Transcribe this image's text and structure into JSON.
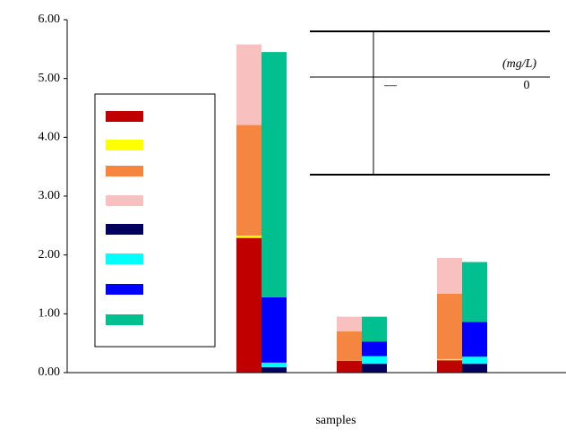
{
  "chart_data": {
    "type": "bar",
    "stacked": true,
    "x_label": "samples",
    "categories": [
      null,
      null,
      null,
      null
    ],
    "ylim": [
      0,
      6
    ],
    "yticks": [
      {
        "value": 0,
        "label": "0.00"
      },
      {
        "value": 1,
        "label": "1.00"
      },
      {
        "value": 2,
        "label": "2.00"
      },
      {
        "value": 3,
        "label": "3.00"
      },
      {
        "value": 4,
        "label": "4.00"
      },
      {
        "value": 5,
        "label": "5.00"
      },
      {
        "value": 6,
        "label": "6.00"
      }
    ],
    "series": [
      {
        "color": "#c00000",
        "stack": "a",
        "values": [
          0,
          2.29,
          0.2,
          0.21
        ]
      },
      {
        "color": "#ffff00",
        "stack": "a",
        "values": [
          0,
          0.04,
          0,
          0.02
        ]
      },
      {
        "color": "#f58642",
        "stack": "a",
        "values": [
          0,
          1.88,
          0.5,
          1.11
        ]
      },
      {
        "color": "#f9c0c0",
        "stack": "a",
        "values": [
          0,
          1.37,
          0.25,
          0.61
        ]
      },
      {
        "color": "#00005e",
        "stack": "b",
        "values": [
          0,
          0.09,
          0.15,
          0.15
        ]
      },
      {
        "color": "#00ffff",
        "stack": "b",
        "values": [
          0,
          0.08,
          0.13,
          0.12
        ]
      },
      {
        "color": "#0000ff",
        "stack": "b",
        "values": [
          0,
          1.11,
          0.25,
          0.59
        ]
      },
      {
        "color": "#00c090",
        "stack": "b",
        "values": [
          0,
          4.17,
          0.42,
          1.02
        ]
      }
    ],
    "inset_table": {
      "unit": "(mg/L)",
      "cells": [
        "—",
        "0"
      ]
    }
  }
}
